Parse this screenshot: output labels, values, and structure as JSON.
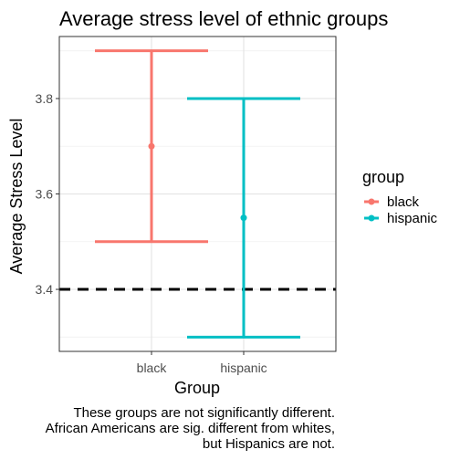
{
  "chart_data": {
    "type": "errorbar",
    "title": "Average stress level of ethnic groups",
    "xlabel": "Group",
    "ylabel": "Average Stress Level",
    "categories": [
      "black",
      "hispanic"
    ],
    "series": [
      {
        "name": "black",
        "color": "#F8766D",
        "mean": 3.7,
        "lower": 3.5,
        "upper": 3.9
      },
      {
        "name": "hispanic",
        "color": "#00BFC4",
        "mean": 3.55,
        "lower": 3.3,
        "upper": 3.8
      }
    ],
    "yticks": [
      "3.4",
      "3.6",
      "3.8"
    ],
    "ylim": [
      3.27,
      3.93
    ],
    "reference_line": {
      "y": 3.4,
      "style": "dashed",
      "color": "#000000"
    },
    "legend": {
      "title": "group",
      "position": "right",
      "entries": [
        "black",
        "hispanic"
      ]
    },
    "grid": true,
    "caption": [
      "These groups are not significantly different.",
      "African Americans are sig. different from whites,",
      "but Hispanics are not."
    ]
  }
}
